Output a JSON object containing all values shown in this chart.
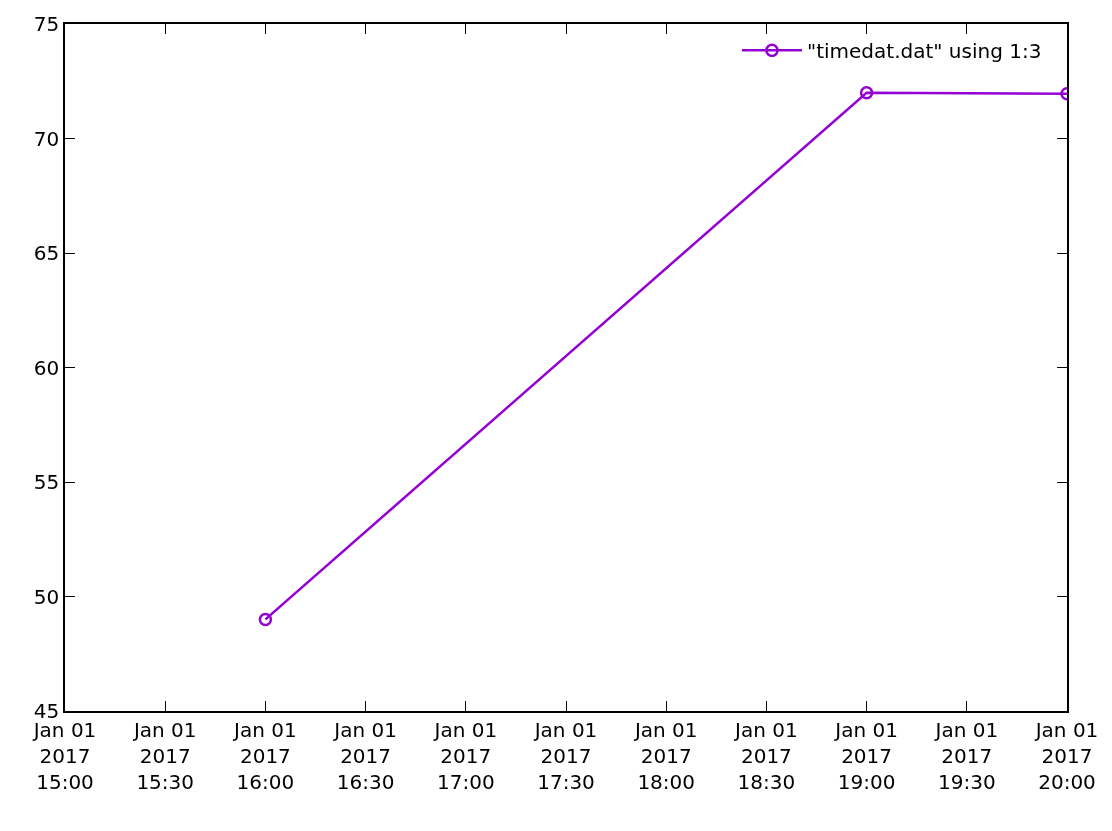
{
  "chart_data": {
    "type": "line",
    "marker": "circle",
    "line_style": "solid",
    "legend": "top right",
    "x": [
      "2017-01-01T16:00",
      "2017-01-01T19:00",
      "2017-01-01T20:00"
    ],
    "series": [
      {
        "name": "\"timedat.dat\" using 1:3",
        "color": "#9400d3",
        "values": [
          49,
          72,
          71.95
        ]
      }
    ],
    "xlim": [
      "2017-01-01T15:00",
      "2017-01-01T20:00"
    ],
    "xticks": [
      {
        "value": "2017-01-01T15:00",
        "label": "Jan 01\n2017\n15:00"
      },
      {
        "value": "2017-01-01T15:30",
        "label": "Jan 01\n2017\n15:30"
      },
      {
        "value": "2017-01-01T16:00",
        "label": "Jan 01\n2017\n16:00"
      },
      {
        "value": "2017-01-01T16:30",
        "label": "Jan 01\n2017\n16:30"
      },
      {
        "value": "2017-01-01T17:00",
        "label": "Jan 01\n2017\n17:00"
      },
      {
        "value": "2017-01-01T17:30",
        "label": "Jan 01\n2017\n17:30"
      },
      {
        "value": "2017-01-01T18:00",
        "label": "Jan 01\n2017\n18:00"
      },
      {
        "value": "2017-01-01T18:30",
        "label": "Jan 01\n2017\n18:30"
      },
      {
        "value": "2017-01-01T19:00",
        "label": "Jan 01\n2017\n19:00"
      },
      {
        "value": "2017-01-01T19:30",
        "label": "Jan 01\n2017\n19:30"
      },
      {
        "value": "2017-01-01T20:00",
        "label": "Jan 01\n2017\n20:00"
      }
    ],
    "ylim": [
      45,
      75
    ],
    "yticks": [
      45,
      50,
      55,
      60,
      65,
      70,
      75
    ]
  }
}
